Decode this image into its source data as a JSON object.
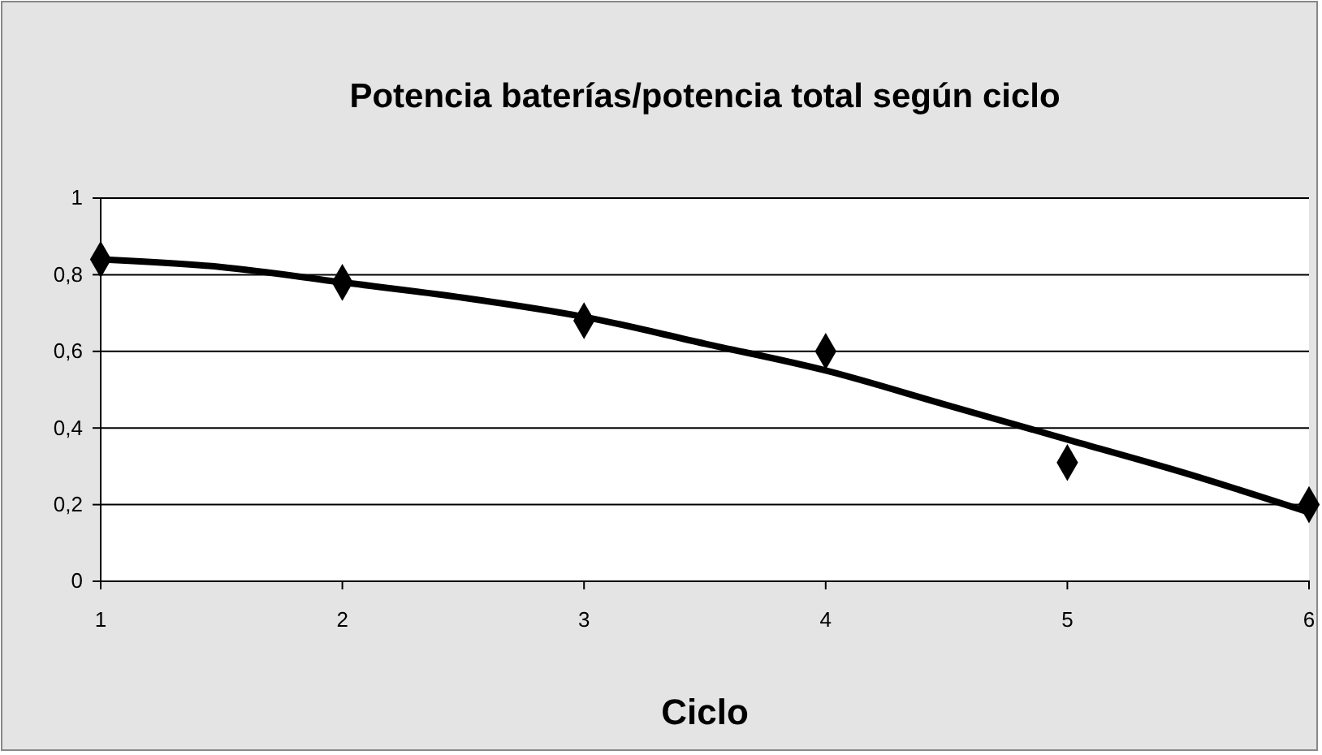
{
  "chart_data": {
    "type": "scatter",
    "title": "Potencia baterías/potencia total según ciclo",
    "xlabel": "Ciclo",
    "x": [
      1,
      2,
      3,
      4,
      5,
      6
    ],
    "series": [
      {
        "color": "#000000",
        "marker": "diamond",
        "values": [
          0.84,
          0.78,
          0.68,
          0.6,
          0.31,
          0.2
        ]
      },
      {
        "type": "line",
        "color": "#000000",
        "marker": "none",
        "x": [
          1,
          1.5,
          2,
          2.5,
          3,
          3.5,
          4,
          4.5,
          5,
          5.5,
          6
        ],
        "values": [
          0.84,
          0.82,
          0.78,
          0.74,
          0.69,
          0.62,
          0.55,
          0.46,
          0.37,
          0.28,
          0.18
        ]
      }
    ],
    "xlim": [
      1,
      6
    ],
    "xticks": [
      1,
      2,
      3,
      4,
      5,
      6
    ],
    "ylim": [
      0,
      1
    ],
    "yticks": [
      0,
      {
        "value": 0.2,
        "label": "0,2"
      },
      {
        "value": 0.4,
        "label": "0,4"
      },
      {
        "value": 0.6,
        "label": "0,6"
      },
      {
        "value": 0.8,
        "label": "0,8"
      },
      1
    ],
    "grid": "y"
  }
}
